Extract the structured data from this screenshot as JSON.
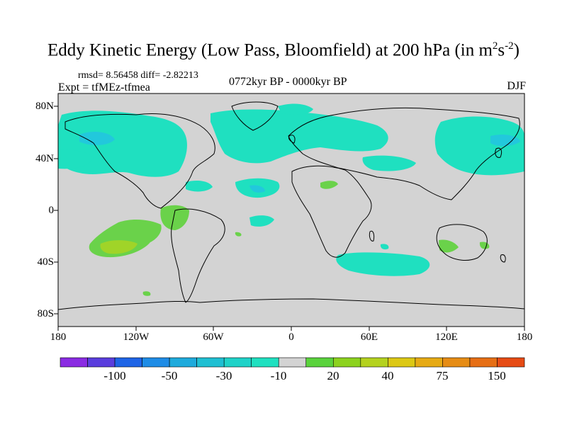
{
  "title": {
    "main": "Eddy Kinetic Energy (Low Pass, Bloomfield) at 200 hPa (in m",
    "sup1": "2",
    "mid": "s",
    "sup2": "-2",
    "end": ")"
  },
  "stats": "rmsd= 8.56458 diff= -2.82213",
  "experiment": "Expt = tfMEz-tfmea",
  "period": "0772kyr BP - 0000kyr BP",
  "season": "DJF",
  "colors": {
    "land_and_ocean": "#d3d3d3",
    "coastline": "#000000",
    "positive_fill": "#6ad24a",
    "positive_strong": "#a0d428",
    "negative_fill": "#1fe0c0",
    "negative_strong": "#22c8dc"
  },
  "map": {
    "projection": "cylindrical-equidistant",
    "lon_range": [
      -180,
      180
    ],
    "lat_range": [
      -90,
      90
    ],
    "y_ticks": [
      "80N",
      "40N",
      "0",
      "40S",
      "80S"
    ],
    "x_ticks": [
      "180",
      "120W",
      "60W",
      "0",
      "60E",
      "120E",
      "180"
    ]
  },
  "colorbar": {
    "colors": [
      "#8a2be2",
      "#5a3ddd",
      "#1e64e6",
      "#1e8ce6",
      "#1eaadc",
      "#1fbfd2",
      "#1fd2c8",
      "#1fe0c0",
      "#d3d3d3",
      "#5ad23c",
      "#8cd21e",
      "#b4d21e",
      "#dcc814",
      "#e6aa14",
      "#e68c14",
      "#e66e14",
      "#e64b14"
    ],
    "labels": [
      "-100",
      "-50",
      "-30",
      "-10",
      "20",
      "40",
      "75",
      "150"
    ]
  }
}
